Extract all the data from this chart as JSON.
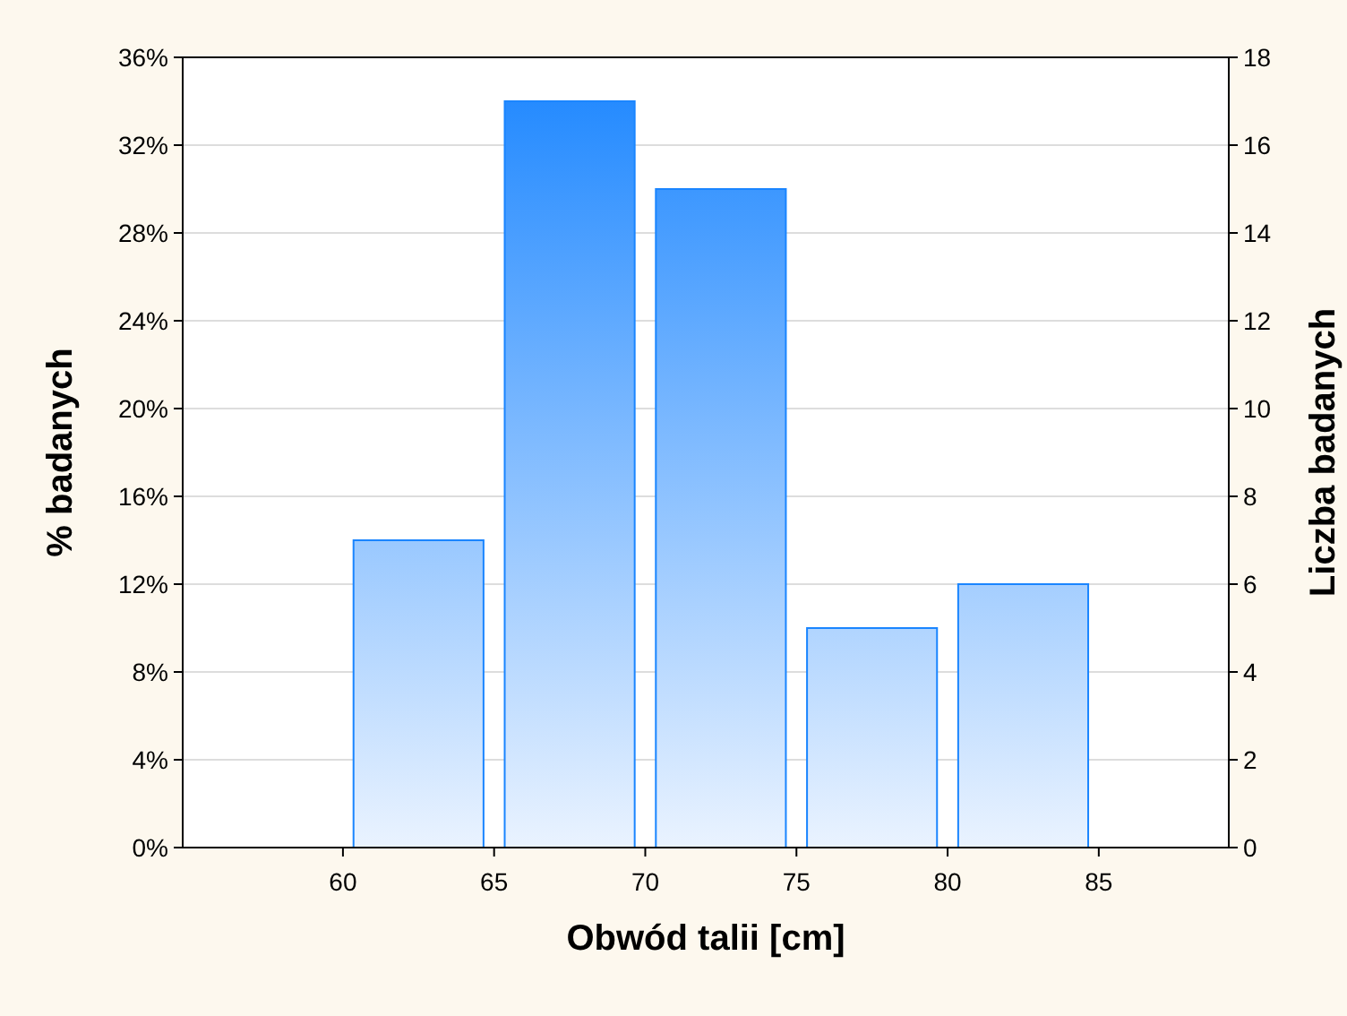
{
  "chart_data": {
    "type": "histogram",
    "xlabel": "Obwód talii [cm]",
    "ylabel": "% badanych",
    "y2label": "Liczba badanych",
    "bins": [
      60,
      65,
      70,
      75,
      80,
      85
    ],
    "values": [
      14,
      34,
      30,
      10,
      12
    ],
    "color": "#1a85ff",
    "xlim": [
      54.7,
      89.3
    ],
    "xticks": [
      60,
      65,
      70,
      75,
      80,
      85
    ],
    "ylim": [
      0,
      36
    ],
    "yticks": [
      {
        "value": 0,
        "label": "0%"
      },
      {
        "value": 4,
        "label": "4%"
      },
      {
        "value": 8,
        "label": "8%"
      },
      {
        "value": 12,
        "label": "12%"
      },
      {
        "value": 16,
        "label": "16%"
      },
      {
        "value": 20,
        "label": "20%"
      },
      {
        "value": 24,
        "label": "24%"
      },
      {
        "value": 28,
        "label": "28%"
      },
      {
        "value": 32,
        "label": "32%"
      },
      {
        "value": 36,
        "label": "36%"
      }
    ],
    "y2lim": [
      0,
      18
    ],
    "y2ticks": [
      0,
      2,
      4,
      6,
      8,
      10,
      12,
      14,
      16,
      18
    ],
    "grid": "y"
  }
}
